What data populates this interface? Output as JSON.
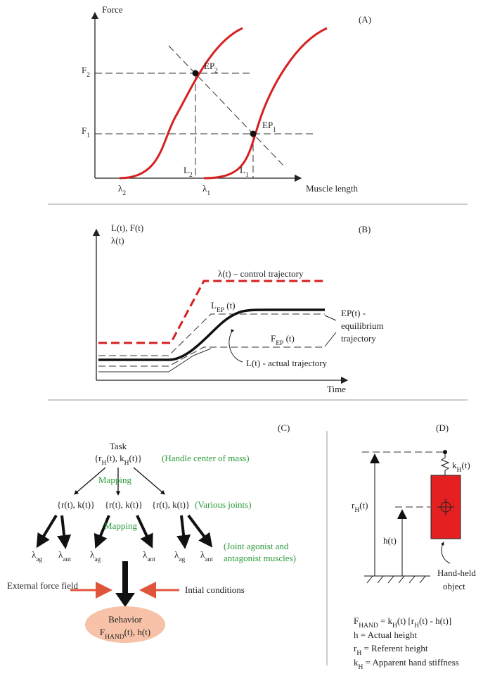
{
  "panel_a": {
    "label": "(A)",
    "y_axis": "Force",
    "x_axis": "Muscle length",
    "f2": [
      "F",
      {
        "sub": "2"
      }
    ],
    "f1": [
      "F",
      {
        "sub": "1"
      }
    ],
    "ep2": [
      "EP",
      {
        "sub": "2"
      }
    ],
    "ep1": [
      "EP",
      {
        "sub": "1"
      }
    ],
    "l2": [
      "L",
      {
        "sub": "2"
      }
    ],
    "l1": [
      "L",
      {
        "sub": "1"
      }
    ],
    "lambda2": [
      "λ",
      {
        "sub": "2"
      }
    ],
    "lambda1": [
      "λ",
      {
        "sub": "1"
      }
    ]
  },
  "panel_b": {
    "label": "(B)",
    "y_axis_lines": [
      "L(t), F(t)",
      "λ(t)"
    ],
    "x_axis": "Time",
    "control": "λ(t) – control trajectory",
    "lep": [
      "L",
      {
        "sub": "EP"
      },
      " (t)"
    ],
    "fep": [
      "F",
      {
        "sub": "EP"
      },
      " (t)"
    ],
    "ep_lines": [
      "EP(t) -",
      "equilibrium",
      "trajectory"
    ],
    "actual": "L(t) - actual trajectory"
  },
  "panel_c": {
    "label": "(C)",
    "task": "Task",
    "task_vars": [
      "{r",
      {
        "sub": "H"
      },
      "(t), k",
      {
        "sub": "H"
      },
      "(t)}"
    ],
    "task_note": "(Handle center of mass)",
    "mapping_1": "Mapping",
    "mapping_2": "Mapping",
    "joints": [
      "{r(t), k(t)}",
      "{r(t), k(t)}",
      "{r(t), k(t)}"
    ],
    "joints_note": "(Various joints)",
    "muscles": [
      [
        "λ",
        {
          "sub": "ag"
        }
      ],
      [
        "λ",
        {
          "sub": "ant"
        }
      ],
      [
        "λ",
        {
          "sub": "ag"
        }
      ],
      [
        "λ",
        {
          "sub": "ant"
        }
      ],
      [
        "λ",
        {
          "sub": "ag"
        }
      ],
      [
        "λ",
        {
          "sub": "ant"
        }
      ]
    ],
    "muscles_note": [
      "(Joint agonist and",
      "antagonist muscles)"
    ],
    "external": "External force field",
    "initial": "Intial conditions",
    "behavior": "Behavior",
    "behavior_vars": [
      "F",
      {
        "sub": "HAND"
      },
      "(t), h(t)"
    ]
  },
  "panel_d": {
    "label": "(D)",
    "kh": [
      "k",
      {
        "sub": "H"
      },
      "(t)"
    ],
    "rh": [
      "r",
      {
        "sub": "H"
      },
      "(t)"
    ],
    "h": "h(t)",
    "object_lines": [
      "Hand-held",
      "object"
    ],
    "formula": [
      "F",
      {
        "sub": "HAND"
      },
      " = k",
      {
        "sub": "H"
      },
      "(t) [r",
      {
        "sub": "H"
      },
      "(t) - h(t)]"
    ],
    "legend": [
      [
        "h = Actual height"
      ],
      [
        "r",
        {
          "sub": "H"
        },
        " = Referent height"
      ],
      [
        "k",
        {
          "sub": "H"
        },
        " = Apparent hand stiffness"
      ]
    ]
  }
}
